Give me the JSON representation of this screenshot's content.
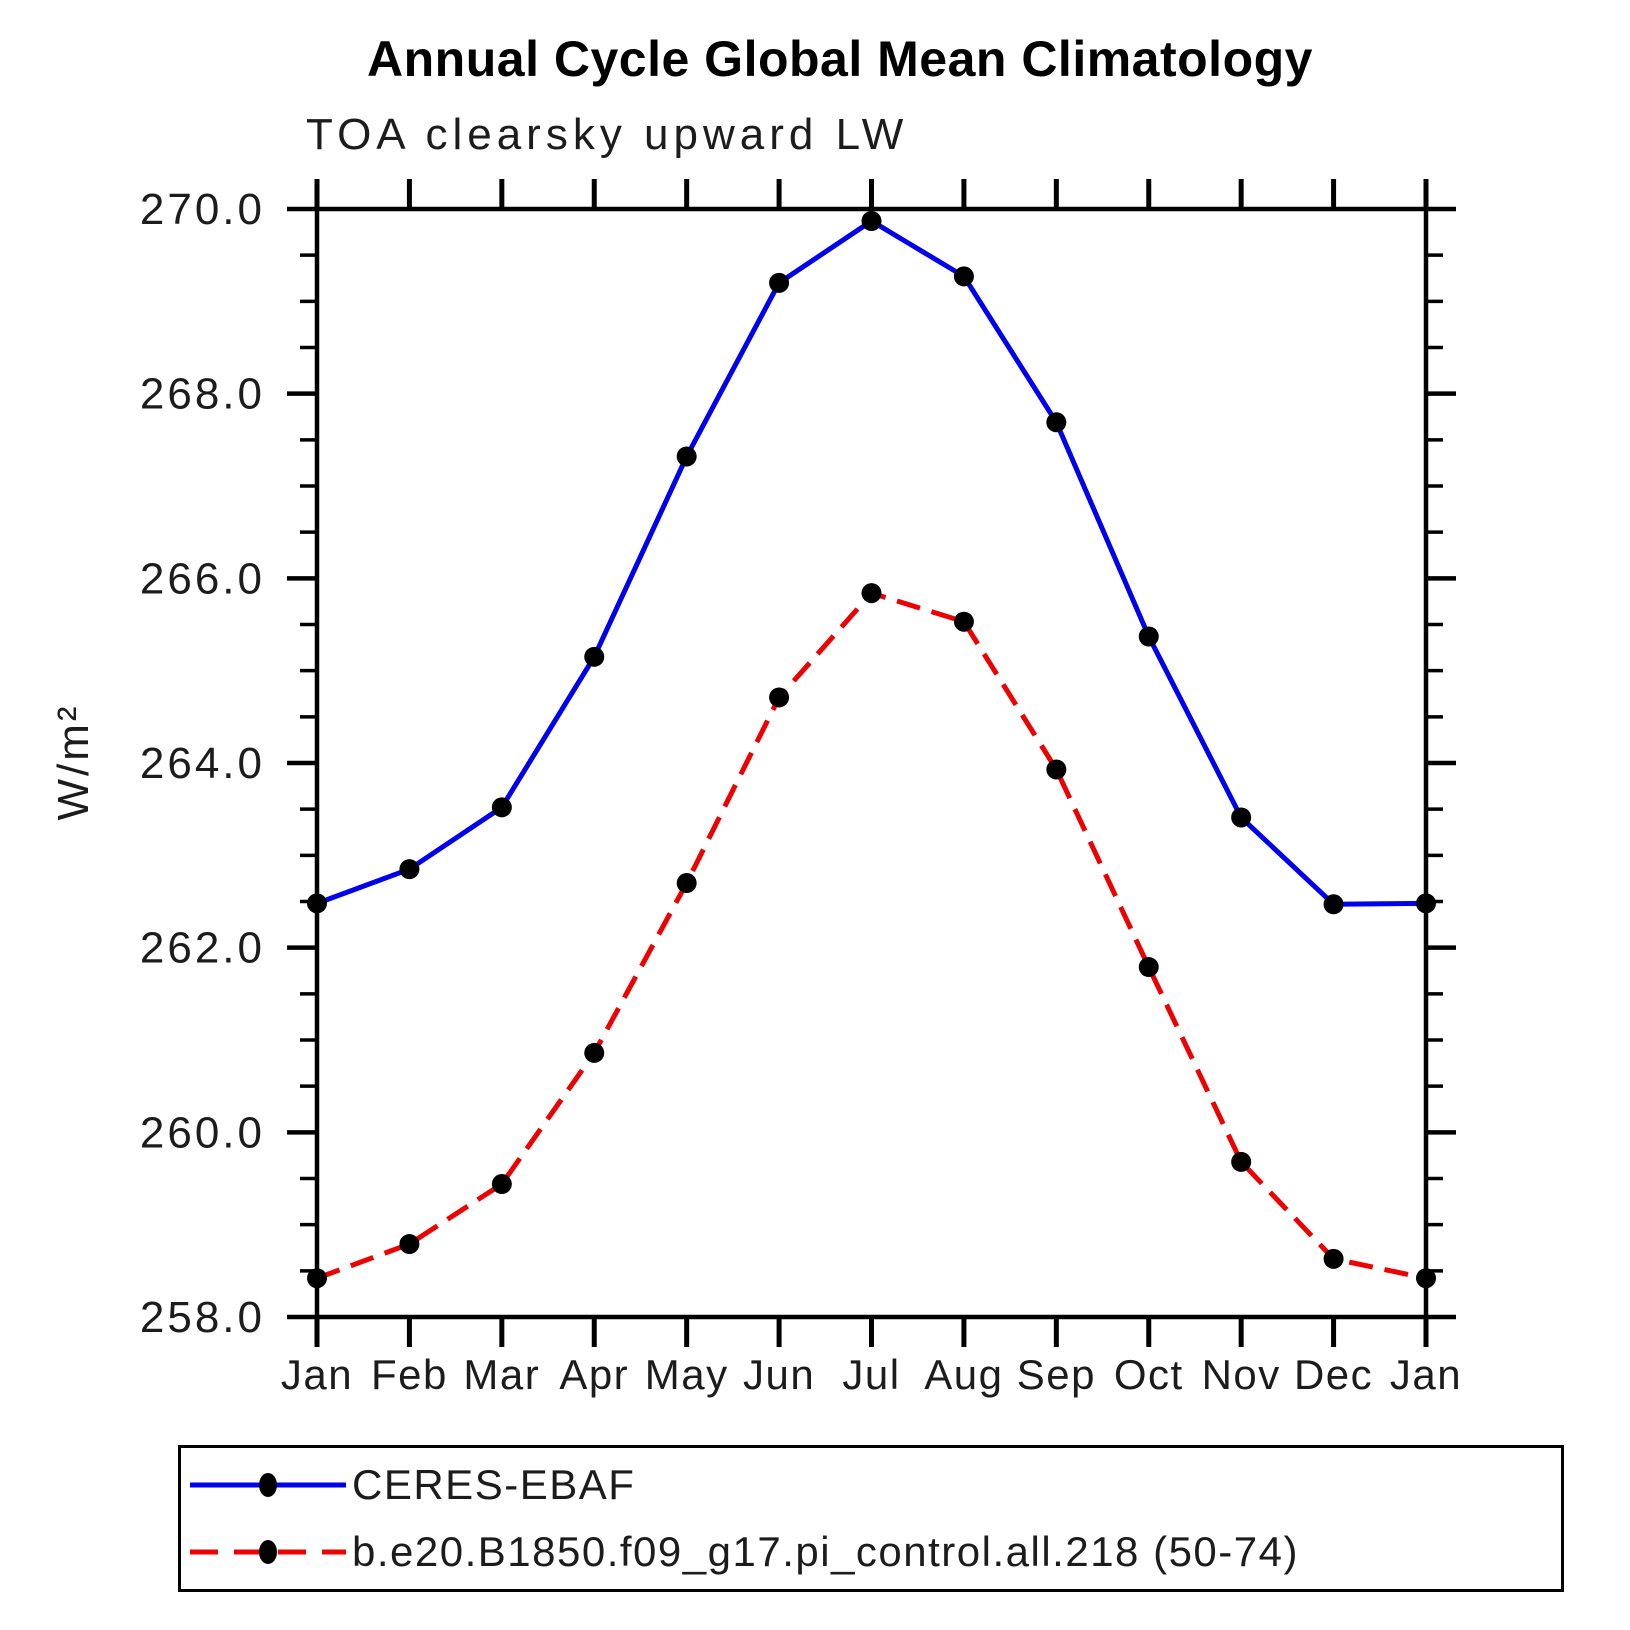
{
  "chart_data": {
    "type": "line",
    "title": "Annual Cycle Global Mean Climatology",
    "subtitle": "TOA clearsky upward LW",
    "ylabel": "W/m²",
    "categories": [
      "Jan",
      "Feb",
      "Mar",
      "Apr",
      "May",
      "Jun",
      "Jul",
      "Aug",
      "Sep",
      "Oct",
      "Nov",
      "Dec",
      "Jan"
    ],
    "series": [
      {
        "name": "CERES-EBAF",
        "color": "#0000ee",
        "line_style": "solid",
        "values": [
          262.48,
          262.85,
          263.52,
          265.15,
          267.32,
          269.2,
          269.87,
          269.27,
          267.69,
          265.37,
          263.41,
          262.47,
          262.48
        ]
      },
      {
        "name": "b.e20.B1850.f09_g17.pi_control.all.218 (50-74)",
        "color": "#ee0000",
        "line_style": "dashed",
        "values": [
          258.42,
          258.79,
          259.44,
          260.86,
          262.7,
          264.71,
          265.84,
          265.53,
          263.93,
          261.79,
          259.68,
          258.63,
          258.42
        ]
      }
    ],
    "marker_color": "#000000",
    "ylim": [
      258.0,
      270.0
    ],
    "ytick_step": 2.0,
    "ytick_minor_step": 0.5,
    "ytick_labels": [
      "258.0",
      "260.0",
      "262.0",
      "264.0",
      "266.0",
      "268.0",
      "270.0"
    ],
    "grid": "off",
    "legend_position": "bottom"
  }
}
